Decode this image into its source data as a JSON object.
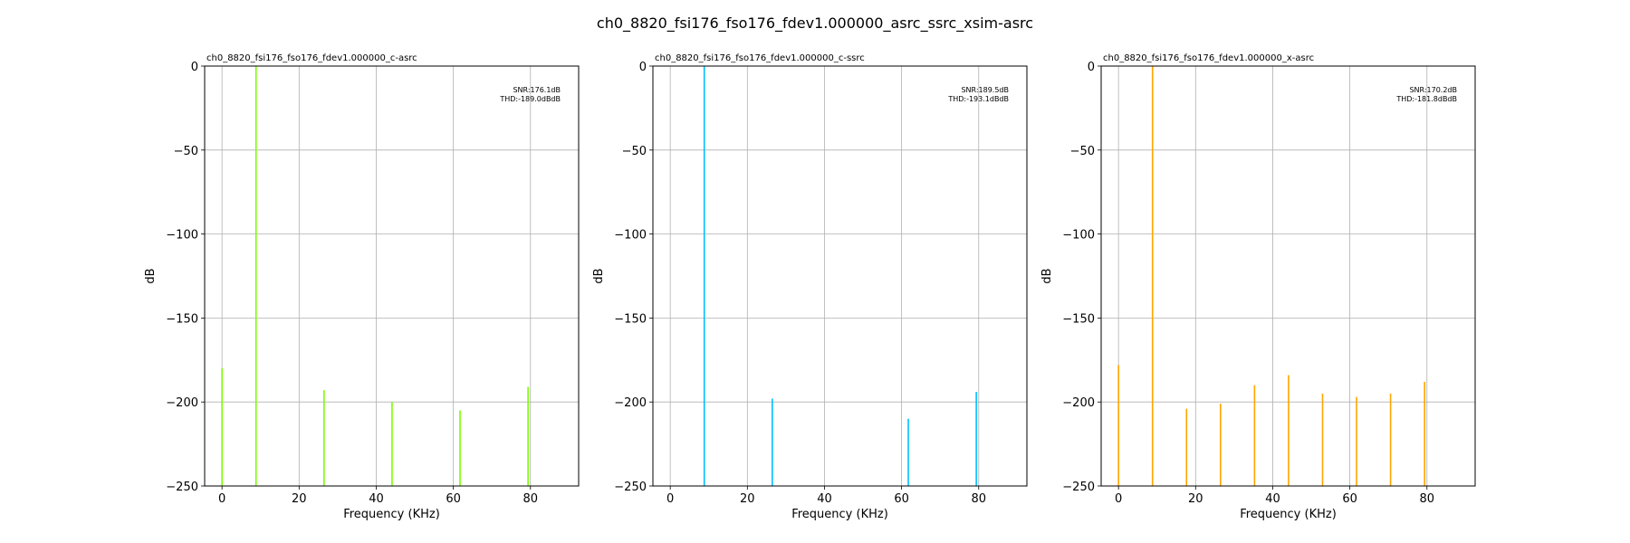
{
  "figure": {
    "suptitle": "ch0_8820_fsi176_fso176_fdev1.000000_asrc_ssrc_xsim-asrc"
  },
  "chart_data": [
    {
      "type": "bar",
      "title": "ch0_8820_fsi176_fso176_fdev1.000000_c-asrc",
      "xlabel": "Frequency (KHz)",
      "ylabel": "dB",
      "xlim": [
        -4.5,
        92.5
      ],
      "ylim": [
        -250,
        0
      ],
      "xticks": [
        0,
        20,
        40,
        60,
        80
      ],
      "yticks": [
        0,
        -50,
        -100,
        -150,
        -200,
        -250
      ],
      "grid": true,
      "color": "#7cfc00",
      "annotation": [
        "SNR:176.1dB",
        "THD:-189.0dBdB"
      ],
      "series": [
        {
          "x": [
            0,
            8.82,
            26.46,
            44.1,
            61.74,
            79.38
          ],
          "values": [
            -180,
            0,
            -193,
            -200,
            -205,
            -191
          ]
        }
      ]
    },
    {
      "type": "bar",
      "title": "ch0_8820_fsi176_fso176_fdev1.000000_c-ssrc",
      "xlabel": "Frequency (KHz)",
      "ylabel": "dB",
      "xlim": [
        -4.5,
        92.5
      ],
      "ylim": [
        -250,
        0
      ],
      "xticks": [
        0,
        20,
        40,
        60,
        80
      ],
      "yticks": [
        0,
        -50,
        -100,
        -150,
        -200,
        -250
      ],
      "grid": true,
      "color": "#00bfff",
      "annotation": [
        "SNR:189.5dB",
        "THD:-193.1dBdB"
      ],
      "series": [
        {
          "x": [
            8.82,
            26.46,
            61.74,
            79.38
          ],
          "values": [
            0,
            -198,
            -210,
            -194
          ]
        }
      ]
    },
    {
      "type": "bar",
      "title": "ch0_8820_fsi176_fso176_fdev1.000000_x-asrc",
      "xlabel": "Frequency (KHz)",
      "ylabel": "dB",
      "xlim": [
        -4.5,
        92.5
      ],
      "ylim": [
        -250,
        0
      ],
      "xticks": [
        0,
        20,
        40,
        60,
        80
      ],
      "yticks": [
        0,
        -50,
        -100,
        -150,
        -200,
        -250
      ],
      "grid": true,
      "color": "#ffa500",
      "annotation": [
        "SNR:170.2dB",
        "THD:-181.8dBdB"
      ],
      "series": [
        {
          "x": [
            0,
            8.82,
            17.64,
            26.46,
            35.28,
            44.1,
            52.92,
            61.74,
            70.56,
            79.38
          ],
          "values": [
            -178,
            0,
            -204,
            -201,
            -190,
            -184,
            -195,
            -197,
            -195,
            -188
          ]
        }
      ]
    }
  ]
}
